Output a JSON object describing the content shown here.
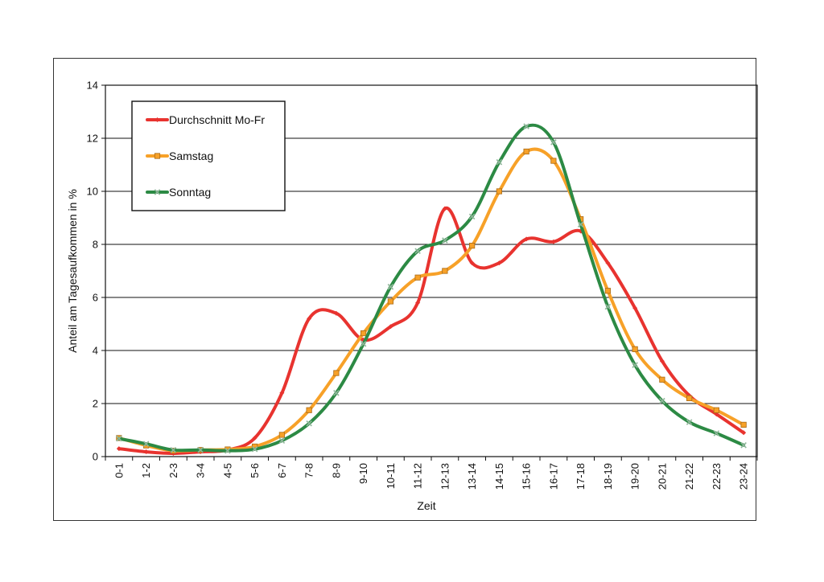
{
  "chart_data": {
    "type": "line",
    "title": "",
    "xlabel": "Zeit",
    "ylabel": "Anteil am Tagesaufkommen in %",
    "ylim": [
      0,
      14
    ],
    "yticks": [
      "0",
      "2",
      "4",
      "6",
      "8",
      "10",
      "12",
      "14"
    ],
    "grid": "horizontal",
    "legend_position": "top-left",
    "categories": [
      "0-1",
      "1-2",
      "2-3",
      "3-4",
      "4-5",
      "5-6",
      "6-7",
      "7-8",
      "8-9",
      "9-10",
      "10-11",
      "11-12",
      "12-13",
      "13-14",
      "14-15",
      "15-16",
      "16-17",
      "17-18",
      "18-19",
      "19-20",
      "20-21",
      "21-22",
      "22-23",
      "23-24"
    ],
    "series": [
      {
        "name": "Durchschnitt Mo-Fr",
        "color": "#e8332f",
        "marker": "diamond",
        "values": [
          0.3,
          0.18,
          0.12,
          0.18,
          0.25,
          0.7,
          2.4,
          5.2,
          5.4,
          4.4,
          4.9,
          5.8,
          9.35,
          7.3,
          7.3,
          8.2,
          8.1,
          8.5,
          7.3,
          5.6,
          3.6,
          2.3,
          1.6,
          0.9
        ]
      },
      {
        "name": "Samstag",
        "color": "#f7a128",
        "marker": "square",
        "values": [
          0.7,
          0.42,
          0.22,
          0.25,
          0.27,
          0.38,
          0.82,
          1.75,
          3.15,
          4.65,
          5.85,
          6.75,
          7.0,
          7.95,
          10.0,
          11.5,
          11.15,
          8.95,
          6.25,
          4.05,
          2.9,
          2.2,
          1.75,
          1.2
        ]
      },
      {
        "name": "Sonntag",
        "color": "#2c8a44",
        "marker": "x",
        "values": [
          0.68,
          0.48,
          0.25,
          0.25,
          0.22,
          0.28,
          0.6,
          1.25,
          2.4,
          4.25,
          6.4,
          7.75,
          8.15,
          9.05,
          11.1,
          12.45,
          11.85,
          8.75,
          5.65,
          3.45,
          2.1,
          1.3,
          0.88,
          0.43
        ]
      }
    ]
  }
}
